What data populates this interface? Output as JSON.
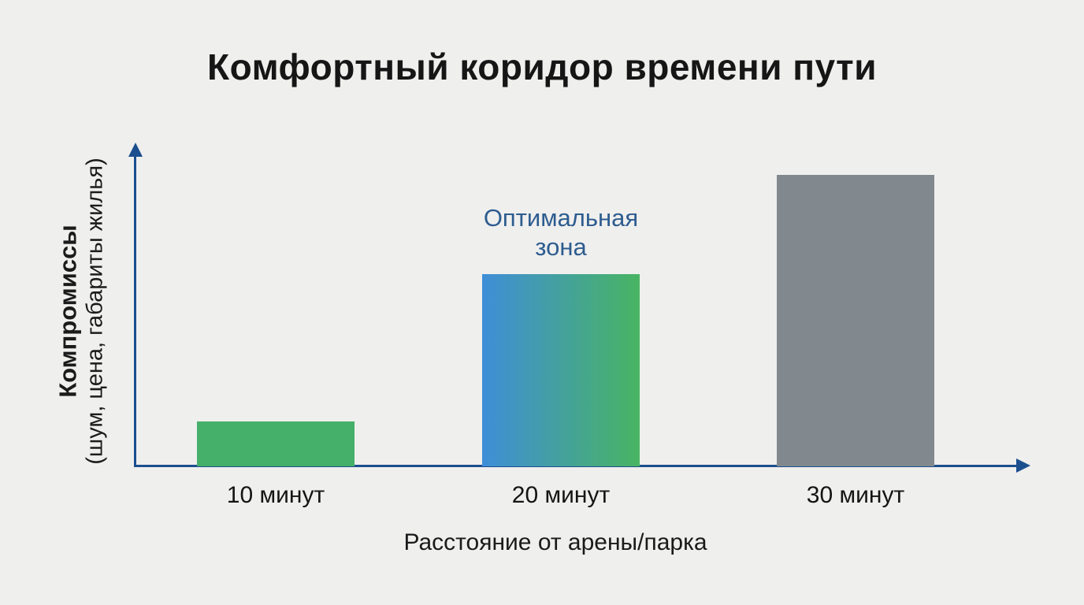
{
  "page": {
    "background": "#efefee"
  },
  "colors": {
    "background": "#efefee",
    "title_text": "#161616",
    "axis": "#1b4f8e",
    "annotation": "#2d5c8f",
    "bar_green": "#45b069",
    "bar_gradient_start": "#3f8ed8",
    "bar_gradient_end": "#48b462",
    "bar_gray": "#81898f"
  },
  "chart_data": {
    "type": "bar",
    "title": "Комфортный коридор времени пути",
    "categories": [
      "10 минут",
      "20 минут",
      "30 минут"
    ],
    "values_relative": [
      0.14,
      0.6,
      0.91
    ],
    "value_scale": "qualitative — no numeric ticks or gridlines shown",
    "bar_fills": [
      "#45b069",
      "linear-gradient(90deg, #3f8ed8, #48b462)",
      "#81898f"
    ],
    "xlabel": "Расстояние от арены/парка",
    "ylabel_line1": "Компромиссы",
    "ylabel_line2": "(шум, цена, габариты жилья)",
    "annotation": {
      "text": "Оптимальная зона",
      "target_category": "20 минут",
      "color": "#2d5c8f"
    },
    "axes": {
      "style": "arrow-ended axes, no ticks, no gridlines, no legend",
      "color": "#1b4f8e"
    }
  }
}
